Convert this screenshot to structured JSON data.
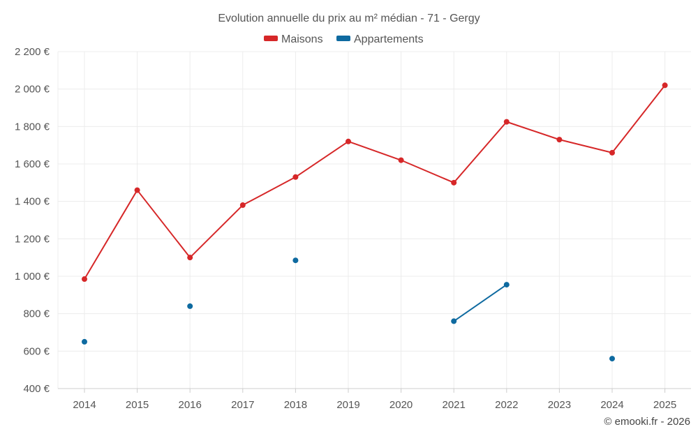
{
  "chart_data": {
    "type": "line",
    "title": "Evolution annuelle du prix au m² médian - 71 - Gergy",
    "x": [
      2014,
      2015,
      2016,
      2017,
      2018,
      2019,
      2020,
      2021,
      2022,
      2023,
      2024,
      2025
    ],
    "x_labels": [
      "2014",
      "2015",
      "2016",
      "2017",
      "2018",
      "2019",
      "2020",
      "2021",
      "2022",
      "2023",
      "2024",
      "2025"
    ],
    "ylim": [
      400,
      2200
    ],
    "yticks": [
      400,
      600,
      800,
      1000,
      1200,
      1400,
      1600,
      1800,
      2000,
      2200
    ],
    "ytick_labels": [
      "400 €",
      "600 €",
      "800 €",
      "1 000 €",
      "1 200 €",
      "1 400 €",
      "1 600 €",
      "1 800 €",
      "2 000 €",
      "2 200 €"
    ],
    "grid": true,
    "legend_position": "top-center",
    "series": [
      {
        "name": "Maisons",
        "color": "#d62728",
        "values": [
          985,
          1460,
          1100,
          1380,
          1530,
          1720,
          1620,
          1500,
          1825,
          1730,
          1660,
          2020
        ]
      },
      {
        "name": "Appartements",
        "color": "#0e6aa0",
        "values": [
          650,
          null,
          840,
          null,
          1085,
          null,
          null,
          760,
          955,
          null,
          560,
          null
        ]
      }
    ],
    "credit": "© emooki.fr - 2026"
  }
}
